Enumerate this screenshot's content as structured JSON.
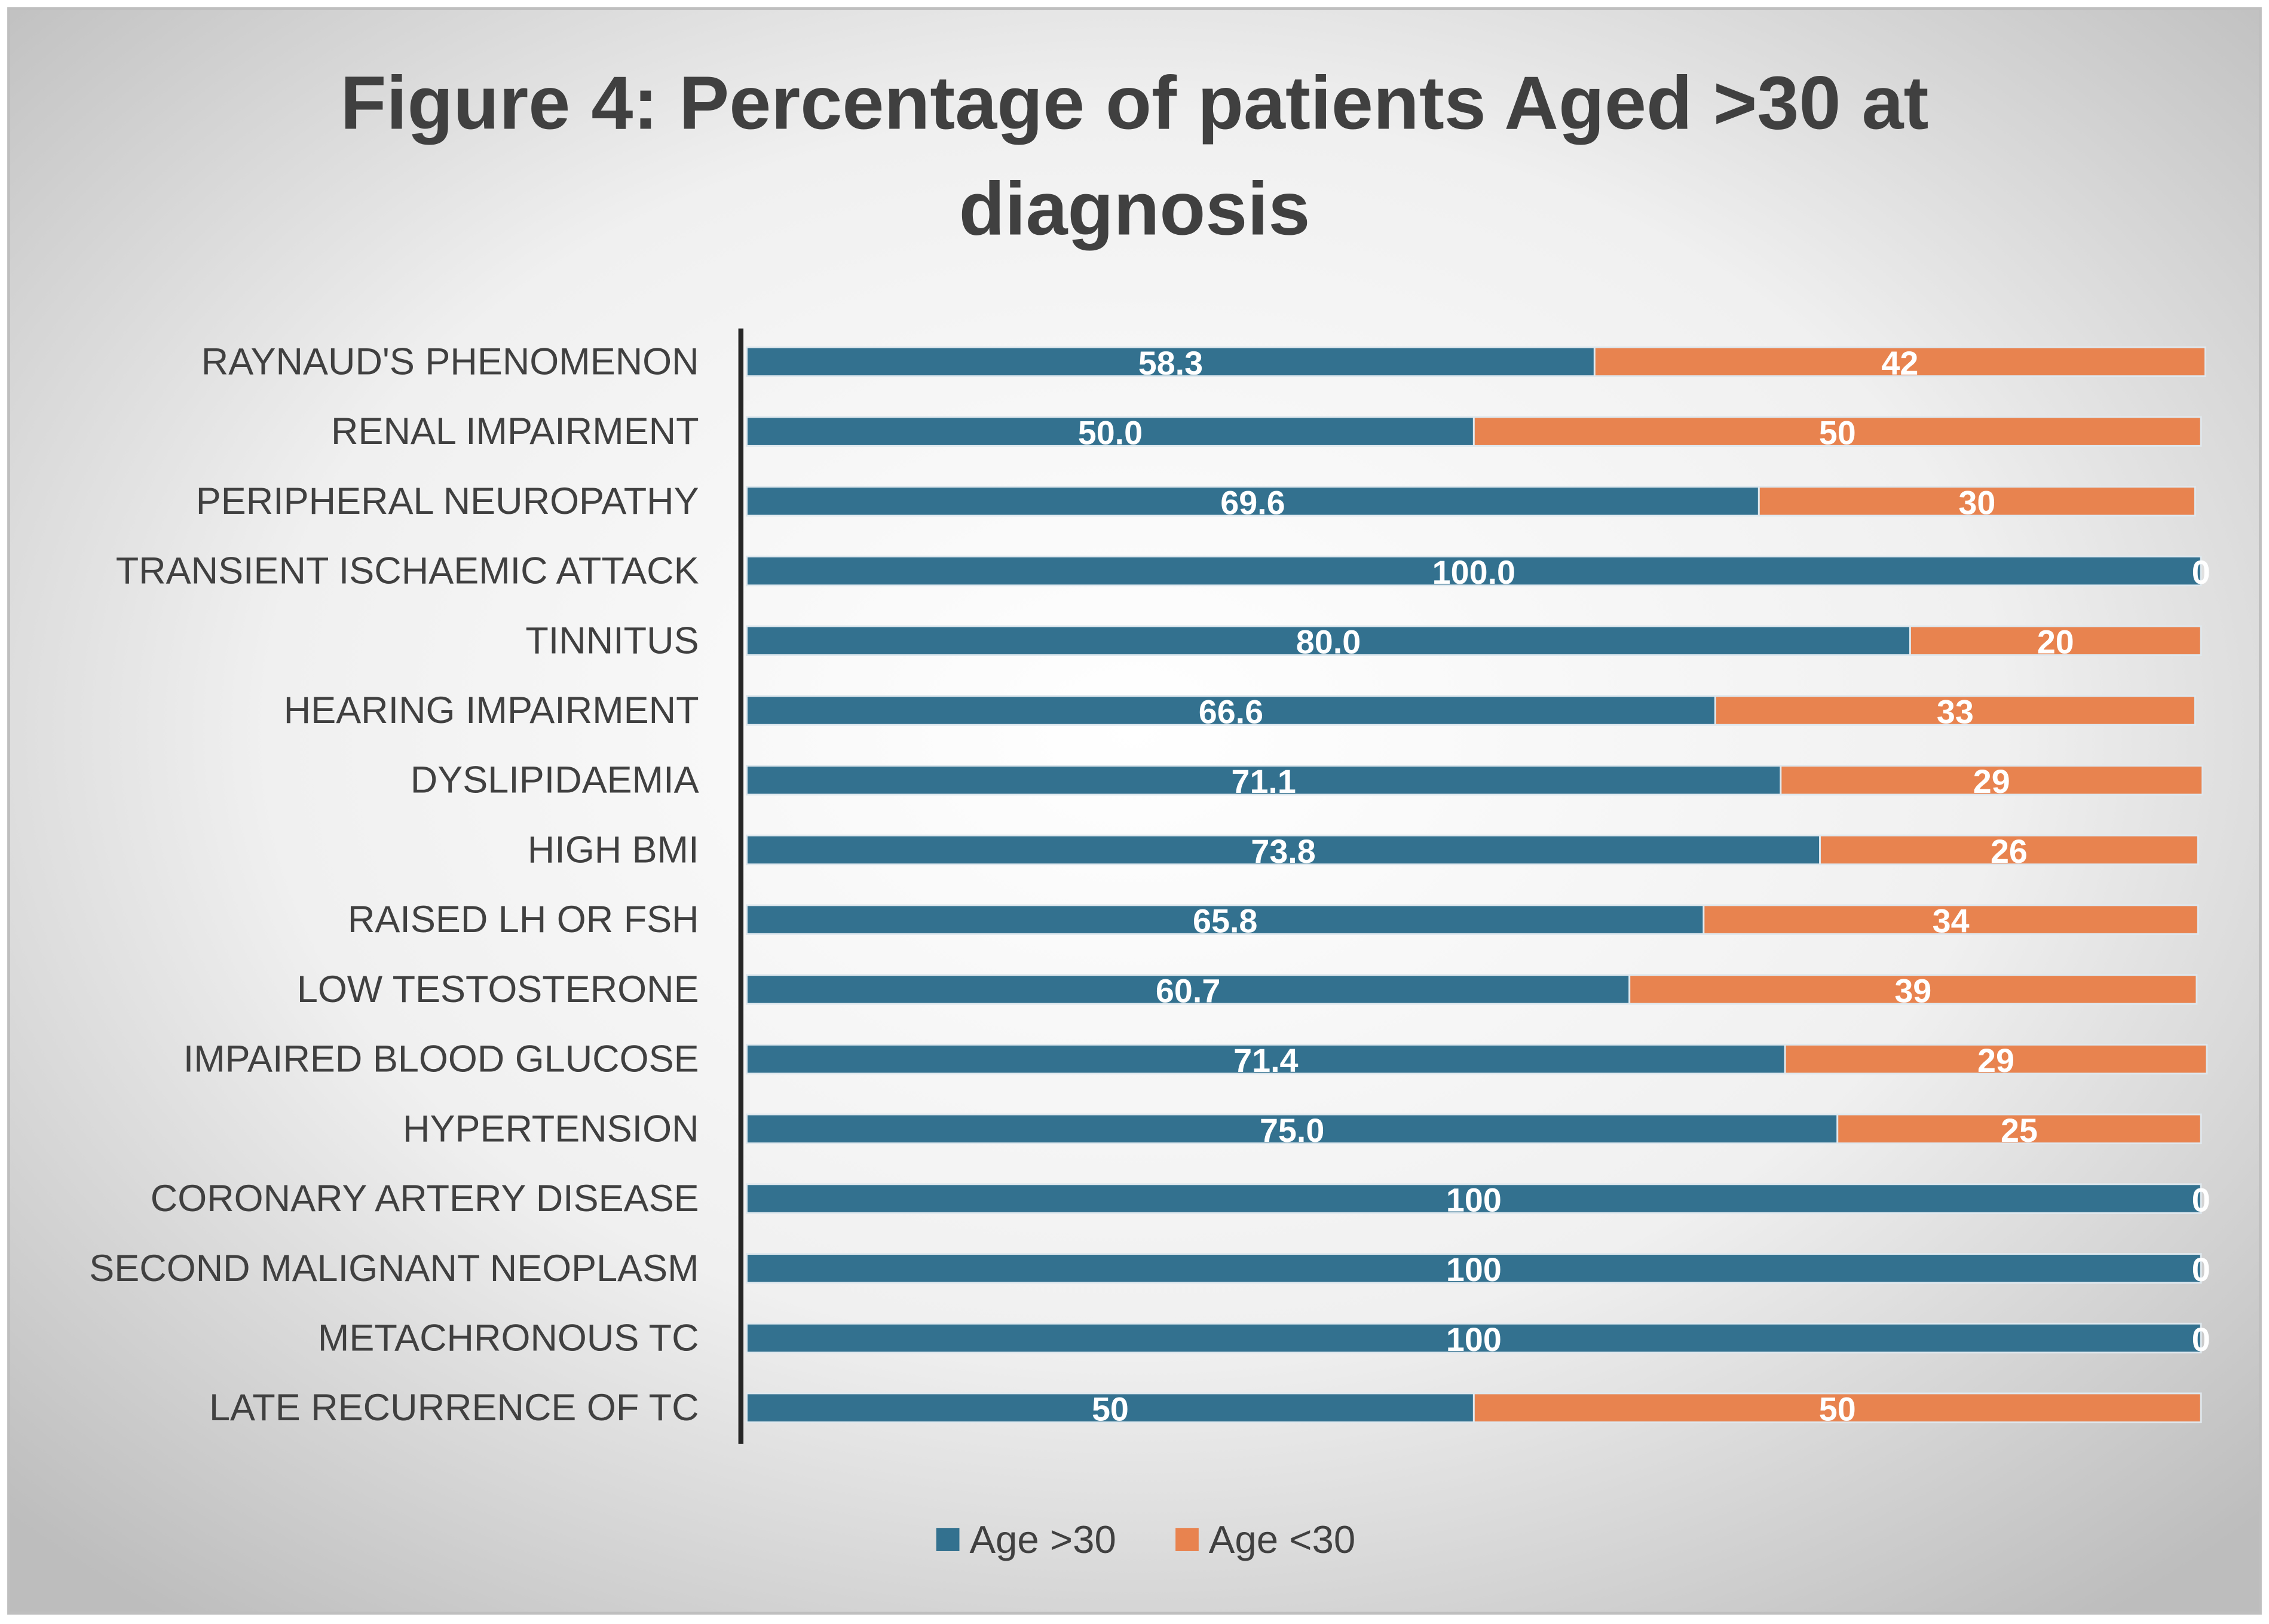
{
  "chart_data": {
    "type": "stacked-bar-horizontal",
    "title": "Figure 4: Percentage of patients Aged >30 at diagnosis",
    "categories": [
      "RAYNAUD'S PHENOMENON",
      "RENAL IMPAIRMENT",
      "PERIPHERAL NEUROPATHY",
      "TRANSIENT ISCHAEMIC ATTACK",
      "TINNITUS",
      "HEARING IMPAIRMENT",
      "DYSLIPIDAEMIA",
      "HIGH BMI",
      "RAISED LH OR FSH",
      "LOW TESTOSTERONE",
      "IMPAIRED BLOOD GLUCOSE",
      "HYPERTENSION",
      "CORONARY ARTERY DISEASE",
      "SECOND MALIGNANT NEOPLASM",
      "METACHRONOUS TC",
      "LATE RECURRENCE OF TC"
    ],
    "series": [
      {
        "name": "Age >30",
        "color": "#33718f",
        "values": [
          58.3,
          50,
          69.6,
          100,
          80,
          66.6,
          71.1,
          73.8,
          65.8,
          60.7,
          71.4,
          75,
          100,
          100,
          100,
          50
        ],
        "value_labels": [
          "58.3",
          "50.0",
          "69.6",
          "100.0",
          "80.0",
          "66.6",
          "71.1",
          "73.8",
          "65.8",
          "60.7",
          "71.4",
          "75.0",
          "100",
          "100",
          "100",
          "50"
        ]
      },
      {
        "name": "Age <30",
        "color": "#e8834f",
        "values": [
          42,
          50,
          30,
          0,
          20,
          33,
          29,
          26,
          34,
          39,
          29,
          25,
          0,
          0,
          0,
          50
        ]
      }
    ],
    "xlim": [
      0,
      100
    ],
    "legend": "bottom"
  }
}
